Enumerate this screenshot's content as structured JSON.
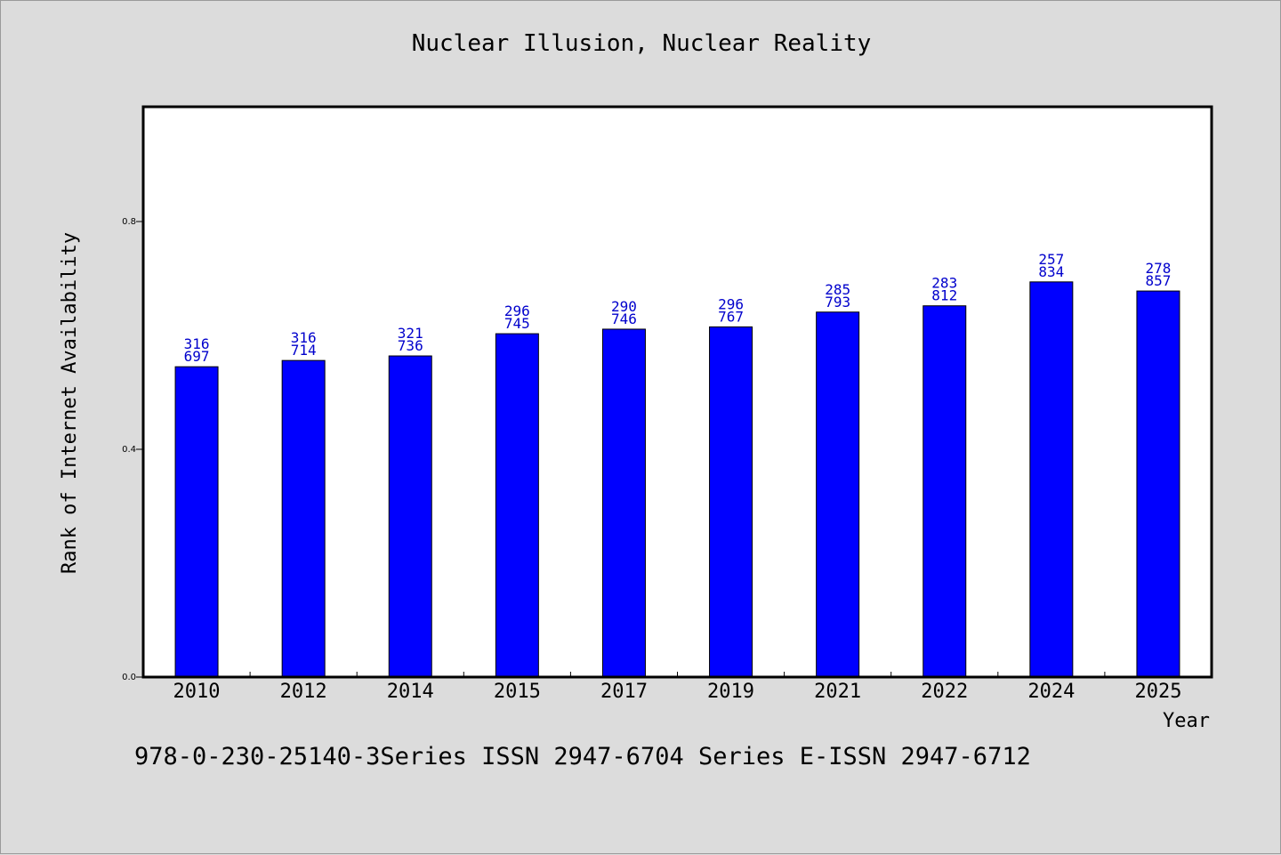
{
  "chart_data": {
    "type": "bar",
    "title": "Nuclear Illusion, Nuclear Reality",
    "xlabel": "Year",
    "ylabel": "Rank of Internet Availability",
    "categories": [
      "2010",
      "2012",
      "2014",
      "2015",
      "2017",
      "2019",
      "2021",
      "2022",
      "2024",
      "2025"
    ],
    "values": [
      0.545,
      0.556,
      0.564,
      0.603,
      0.611,
      0.615,
      0.641,
      0.652,
      0.694,
      0.678
    ],
    "value_labels": [
      [
        "316",
        "697"
      ],
      [
        "316",
        "714"
      ],
      [
        "321",
        "736"
      ],
      [
        "296",
        "745"
      ],
      [
        "290",
        "746"
      ],
      [
        "296",
        "767"
      ],
      [
        "285",
        "793"
      ],
      [
        "283",
        "812"
      ],
      [
        "257",
        "834"
      ],
      [
        "278",
        "857"
      ]
    ],
    "yticks": [
      0.0,
      0.4,
      0.8
    ],
    "ytick_labels": [
      "0.0",
      "0.4",
      "0.8"
    ],
    "ylim": [
      0,
      1.0
    ],
    "grid": false,
    "legend": "none",
    "bar_color": "#0000ff",
    "label_color": "#0000cc"
  },
  "footer": "978-0-230-25140-3Series ISSN 2947-6704 Series E-ISSN 2947-6712"
}
